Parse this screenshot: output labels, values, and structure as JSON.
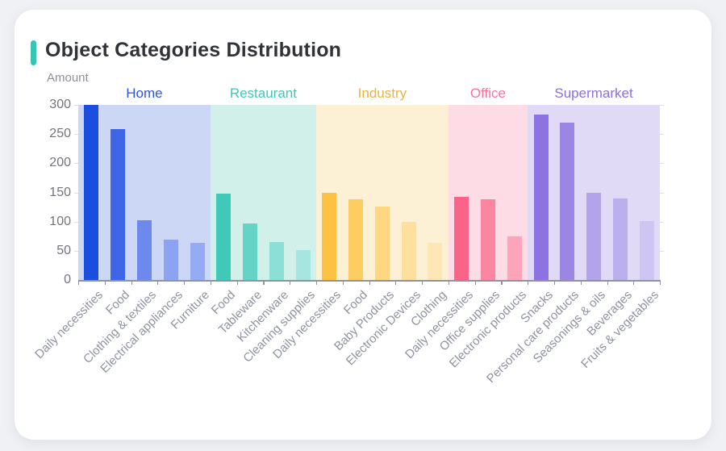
{
  "card": {
    "title": "Object Categories Distribution",
    "accent_color": "#35c4b5"
  },
  "chart_data": {
    "type": "bar",
    "title": "Object Categories Distribution",
    "xlabel": "",
    "ylabel": "Amount",
    "ylim": [
      0,
      300
    ],
    "yticks": [
      0,
      50,
      100,
      150,
      200,
      250,
      300
    ],
    "grid": false,
    "legend_position": "top-inline-band-headers",
    "groups": [
      {
        "name": "Home",
        "label_color": "#2e55e2",
        "band_color": "#ccd7f5",
        "bars": [
          {
            "label": "Daily necessities",
            "value": 300,
            "color": "#1a4ede"
          },
          {
            "label": "Food",
            "value": 258,
            "color": "#3e66e6"
          },
          {
            "label": "Clothing & textiles",
            "value": 103,
            "color": "#6d89ee"
          },
          {
            "label": "Electrical appliances",
            "value": 69,
            "color": "#8ca3f1"
          },
          {
            "label": "Furniture",
            "value": 64,
            "color": "#95abf3"
          }
        ]
      },
      {
        "name": "Restaurant",
        "label_color": "#3fc8b7",
        "band_color": "#d2f0ea",
        "bars": [
          {
            "label": "Food",
            "value": 148,
            "color": "#41c9b8"
          },
          {
            "label": "Tableware",
            "value": 97,
            "color": "#65d3c6"
          },
          {
            "label": "Kitchenware",
            "value": 65,
            "color": "#8cdfd6"
          },
          {
            "label": "Cleaning supplies",
            "value": 51,
            "color": "#a7e6e0"
          }
        ]
      },
      {
        "name": "Industry",
        "label_color": "#eab244",
        "band_color": "#fdf1d5",
        "bars": [
          {
            "label": "Daily necessities",
            "value": 150,
            "color": "#fec242"
          },
          {
            "label": "Food",
            "value": 138,
            "color": "#fdcd62"
          },
          {
            "label": "Baby Products",
            "value": 126,
            "color": "#fdd781"
          },
          {
            "label": "Electronic Devices",
            "value": 100,
            "color": "#fee09e"
          },
          {
            "label": "Clothing",
            "value": 63,
            "color": "#fee7b6"
          }
        ]
      },
      {
        "name": "Office",
        "label_color": "#f9719b",
        "band_color": "#fedce5",
        "bars": [
          {
            "label": "Daily necessities",
            "value": 142,
            "color": "#fa6489"
          },
          {
            "label": "Office supplies",
            "value": 138,
            "color": "#fb86a1"
          },
          {
            "label": "Electronic products",
            "value": 75,
            "color": "#fda4ba"
          }
        ]
      },
      {
        "name": "Supermarket",
        "label_color": "#8a70dc",
        "band_color": "#e0daf6",
        "bars": [
          {
            "label": "Snacks",
            "value": 284,
            "color": "#8d72e1"
          },
          {
            "label": "Personal care products",
            "value": 270,
            "color": "#9b86e4"
          },
          {
            "label": "Seasonings & oils",
            "value": 149,
            "color": "#b2a3ea"
          },
          {
            "label": "Beverages",
            "value": 140,
            "color": "#bcafee"
          },
          {
            "label": "Fruits & vegetables",
            "value": 101,
            "color": "#cfc5f3"
          }
        ]
      }
    ]
  }
}
